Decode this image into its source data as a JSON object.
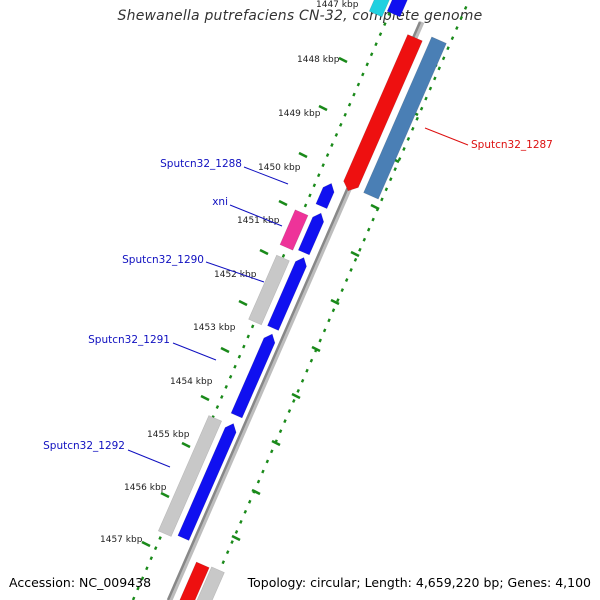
{
  "title": "Shewanella putrefaciens CN-32, complete genome",
  "accession_text": "Accession: NC_009438",
  "summary_text": "Topology: circular; Length: 4,659,220 bp; Genes: 4,100",
  "colors": {
    "gene_forward": "#1010f0",
    "gene_reverse_red": "#ee1010",
    "gene_steelblue": "#4a7fb5",
    "gene_pink": "#ee3399",
    "cds_gray": "#c8c8c8",
    "cyan": "#20d0e0",
    "tick": "#1a8a1a",
    "backbone": "#888888",
    "label_blue": "#1010c0",
    "label_red": "#dd1010"
  },
  "kbp_ticks": [
    "1447 kbp",
    "1448 kbp",
    "1449 kbp",
    "1450 kbp",
    "1451 kbp",
    "1452 kbp",
    "1453 kbp",
    "1454 kbp",
    "1455 kbp",
    "1456 kbp",
    "1457 kbp"
  ],
  "gene_labels": [
    {
      "text": "Sputcn32_1287",
      "color": "red"
    },
    {
      "text": "Sputcn32_1288",
      "color": "blue"
    },
    {
      "text": "xni",
      "color": "blue"
    },
    {
      "text": "Sputcn32_1290",
      "color": "blue"
    },
    {
      "text": "Sputcn32_1291",
      "color": "blue"
    },
    {
      "text": "Sputcn32_1292",
      "color": "blue"
    }
  ]
}
